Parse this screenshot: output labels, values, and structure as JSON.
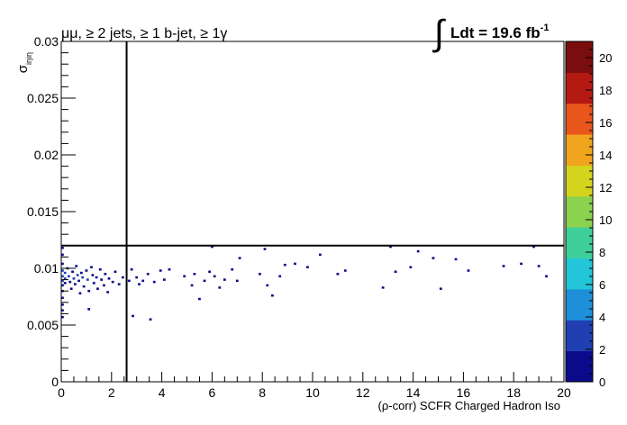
{
  "chart_data": {
    "type": "heatmap",
    "title_left": "μμ, ≥ 2 jets, ≥ 1 b-jet, ≥ 1γ",
    "title_right": {
      "integral": "∫",
      "text": "Ldt = 19.6 fb",
      "superscript": "-1"
    },
    "xlabel": "(ρ-corr) SCFR Charged Hadron Iso",
    "ylabel": {
      "main": "σ",
      "subscript": "iηiη"
    },
    "xlim": [
      0,
      20
    ],
    "ylim": [
      0,
      0.03
    ],
    "zlim": [
      0,
      21
    ],
    "x_ticks": [
      "0",
      "2",
      "4",
      "6",
      "8",
      "10",
      "12",
      "14",
      "16",
      "18",
      "20"
    ],
    "y_ticks": [
      "0",
      "0.005",
      "0.01",
      "0.015",
      "0.02",
      "0.025",
      "0.03"
    ],
    "z_ticks": [
      "0",
      "2",
      "4",
      "6",
      "8",
      "10",
      "12",
      "14",
      "16",
      "18",
      "20"
    ],
    "cut_lines": {
      "x": 2.6,
      "y": 0.012
    },
    "cut_line_color": "#000000",
    "colormap": [
      "#0b0a8a",
      "#1f3fb3",
      "#1e8fd8",
      "#22c6d8",
      "#3fcf9a",
      "#8ad24f",
      "#d4d41e",
      "#f0a51c",
      "#e8561c",
      "#b41a12",
      "#7a0d0d"
    ],
    "points": [
      {
        "x": 0.05,
        "y": 0.0118,
        "z": 1
      },
      {
        "x": 0.05,
        "y": 0.0112,
        "z": 1
      },
      {
        "x": 0.05,
        "y": 0.0104,
        "z": 1
      },
      {
        "x": 0.05,
        "y": 0.0098,
        "z": 2
      },
      {
        "x": 0.05,
        "y": 0.0093,
        "z": 3
      },
      {
        "x": 0.05,
        "y": 0.0089,
        "z": 2
      },
      {
        "x": 0.05,
        "y": 0.0085,
        "z": 1
      },
      {
        "x": 0.05,
        "y": 0.008,
        "z": 1
      },
      {
        "x": 0.05,
        "y": 0.0074,
        "z": 1
      },
      {
        "x": 0.05,
        "y": 0.0068,
        "z": 1
      },
      {
        "x": 0.05,
        "y": 0.0063,
        "z": 1
      },
      {
        "x": 0.05,
        "y": 0.0057,
        "z": 1
      },
      {
        "x": 0.15,
        "y": 0.0096,
        "z": 2
      },
      {
        "x": 0.15,
        "y": 0.0091,
        "z": 2
      },
      {
        "x": 0.15,
        "y": 0.0087,
        "z": 1
      },
      {
        "x": 0.25,
        "y": 0.01,
        "z": 1
      },
      {
        "x": 0.3,
        "y": 0.0093,
        "z": 2
      },
      {
        "x": 0.35,
        "y": 0.0088,
        "z": 1
      },
      {
        "x": 0.4,
        "y": 0.0082,
        "z": 1
      },
      {
        "x": 0.45,
        "y": 0.0097,
        "z": 1
      },
      {
        "x": 0.5,
        "y": 0.0091,
        "z": 2
      },
      {
        "x": 0.55,
        "y": 0.0086,
        "z": 1
      },
      {
        "x": 0.6,
        "y": 0.0102,
        "z": 1
      },
      {
        "x": 0.65,
        "y": 0.0094,
        "z": 2
      },
      {
        "x": 0.7,
        "y": 0.0089,
        "z": 1
      },
      {
        "x": 0.75,
        "y": 0.0078,
        "z": 1
      },
      {
        "x": 0.8,
        "y": 0.0096,
        "z": 1
      },
      {
        "x": 0.85,
        "y": 0.0092,
        "z": 2
      },
      {
        "x": 0.9,
        "y": 0.0084,
        "z": 1
      },
      {
        "x": 1.0,
        "y": 0.0098,
        "z": 1
      },
      {
        "x": 1.05,
        "y": 0.009,
        "z": 2
      },
      {
        "x": 1.1,
        "y": 0.008,
        "z": 1
      },
      {
        "x": 1.1,
        "y": 0.0064,
        "z": 1
      },
      {
        "x": 1.2,
        "y": 0.0101,
        "z": 1
      },
      {
        "x": 1.25,
        "y": 0.0094,
        "z": 1
      },
      {
        "x": 1.3,
        "y": 0.0087,
        "z": 1
      },
      {
        "x": 1.4,
        "y": 0.0092,
        "z": 1
      },
      {
        "x": 1.45,
        "y": 0.0082,
        "z": 1
      },
      {
        "x": 1.55,
        "y": 0.0099,
        "z": 1
      },
      {
        "x": 1.6,
        "y": 0.009,
        "z": 1
      },
      {
        "x": 1.7,
        "y": 0.0085,
        "z": 1
      },
      {
        "x": 1.75,
        "y": 0.0095,
        "z": 1
      },
      {
        "x": 1.85,
        "y": 0.0079,
        "z": 1
      },
      {
        "x": 1.9,
        "y": 0.0091,
        "z": 1
      },
      {
        "x": 2.05,
        "y": 0.0088,
        "z": 1
      },
      {
        "x": 2.15,
        "y": 0.0097,
        "z": 1
      },
      {
        "x": 2.3,
        "y": 0.0086,
        "z": 1
      },
      {
        "x": 2.45,
        "y": 0.0092,
        "z": 1
      },
      {
        "x": 2.7,
        "y": 0.0089,
        "z": 1
      },
      {
        "x": 2.8,
        "y": 0.0099,
        "z": 1
      },
      {
        "x": 2.85,
        "y": 0.0058,
        "z": 1
      },
      {
        "x": 3.0,
        "y": 0.0092,
        "z": 1
      },
      {
        "x": 3.1,
        "y": 0.0086,
        "z": 1
      },
      {
        "x": 3.25,
        "y": 0.0089,
        "z": 1
      },
      {
        "x": 3.45,
        "y": 0.0095,
        "z": 1
      },
      {
        "x": 3.55,
        "y": 0.0055,
        "z": 1
      },
      {
        "x": 3.7,
        "y": 0.0088,
        "z": 1
      },
      {
        "x": 3.95,
        "y": 0.0098,
        "z": 1
      },
      {
        "x": 4.1,
        "y": 0.009,
        "z": 1
      },
      {
        "x": 4.3,
        "y": 0.0099,
        "z": 1
      },
      {
        "x": 4.9,
        "y": 0.0093,
        "z": 1
      },
      {
        "x": 5.2,
        "y": 0.0085,
        "z": 1
      },
      {
        "x": 5.3,
        "y": 0.0095,
        "z": 1
      },
      {
        "x": 5.5,
        "y": 0.0073,
        "z": 1
      },
      {
        "x": 5.7,
        "y": 0.0089,
        "z": 1
      },
      {
        "x": 5.9,
        "y": 0.0097,
        "z": 1
      },
      {
        "x": 6.0,
        "y": 0.0119,
        "z": 1
      },
      {
        "x": 6.1,
        "y": 0.0093,
        "z": 1
      },
      {
        "x": 6.3,
        "y": 0.0083,
        "z": 1
      },
      {
        "x": 6.5,
        "y": 0.009,
        "z": 1
      },
      {
        "x": 6.8,
        "y": 0.0099,
        "z": 1
      },
      {
        "x": 7.0,
        "y": 0.0089,
        "z": 1
      },
      {
        "x": 7.1,
        "y": 0.0109,
        "z": 1
      },
      {
        "x": 7.9,
        "y": 0.0095,
        "z": 1
      },
      {
        "x": 8.1,
        "y": 0.0117,
        "z": 1
      },
      {
        "x": 8.2,
        "y": 0.0085,
        "z": 1
      },
      {
        "x": 8.4,
        "y": 0.0076,
        "z": 1
      },
      {
        "x": 8.7,
        "y": 0.0093,
        "z": 1
      },
      {
        "x": 8.9,
        "y": 0.0103,
        "z": 1
      },
      {
        "x": 9.3,
        "y": 0.0104,
        "z": 1
      },
      {
        "x": 9.8,
        "y": 0.0101,
        "z": 1
      },
      {
        "x": 10.3,
        "y": 0.0112,
        "z": 1
      },
      {
        "x": 11.0,
        "y": 0.0095,
        "z": 1
      },
      {
        "x": 11.3,
        "y": 0.0098,
        "z": 1
      },
      {
        "x": 12.8,
        "y": 0.0083,
        "z": 1
      },
      {
        "x": 13.1,
        "y": 0.0119,
        "z": 1
      },
      {
        "x": 13.3,
        "y": 0.0097,
        "z": 1
      },
      {
        "x": 13.9,
        "y": 0.0101,
        "z": 1
      },
      {
        "x": 14.2,
        "y": 0.0115,
        "z": 1
      },
      {
        "x": 14.8,
        "y": 0.0109,
        "z": 1
      },
      {
        "x": 15.1,
        "y": 0.0082,
        "z": 1
      },
      {
        "x": 15.7,
        "y": 0.0108,
        "z": 1
      },
      {
        "x": 16.2,
        "y": 0.0098,
        "z": 1
      },
      {
        "x": 17.6,
        "y": 0.0102,
        "z": 1
      },
      {
        "x": 18.3,
        "y": 0.0104,
        "z": 1
      },
      {
        "x": 18.8,
        "y": 0.0119,
        "z": 1
      },
      {
        "x": 19.0,
        "y": 0.0102,
        "z": 1
      },
      {
        "x": 19.3,
        "y": 0.0093,
        "z": 1
      }
    ]
  }
}
